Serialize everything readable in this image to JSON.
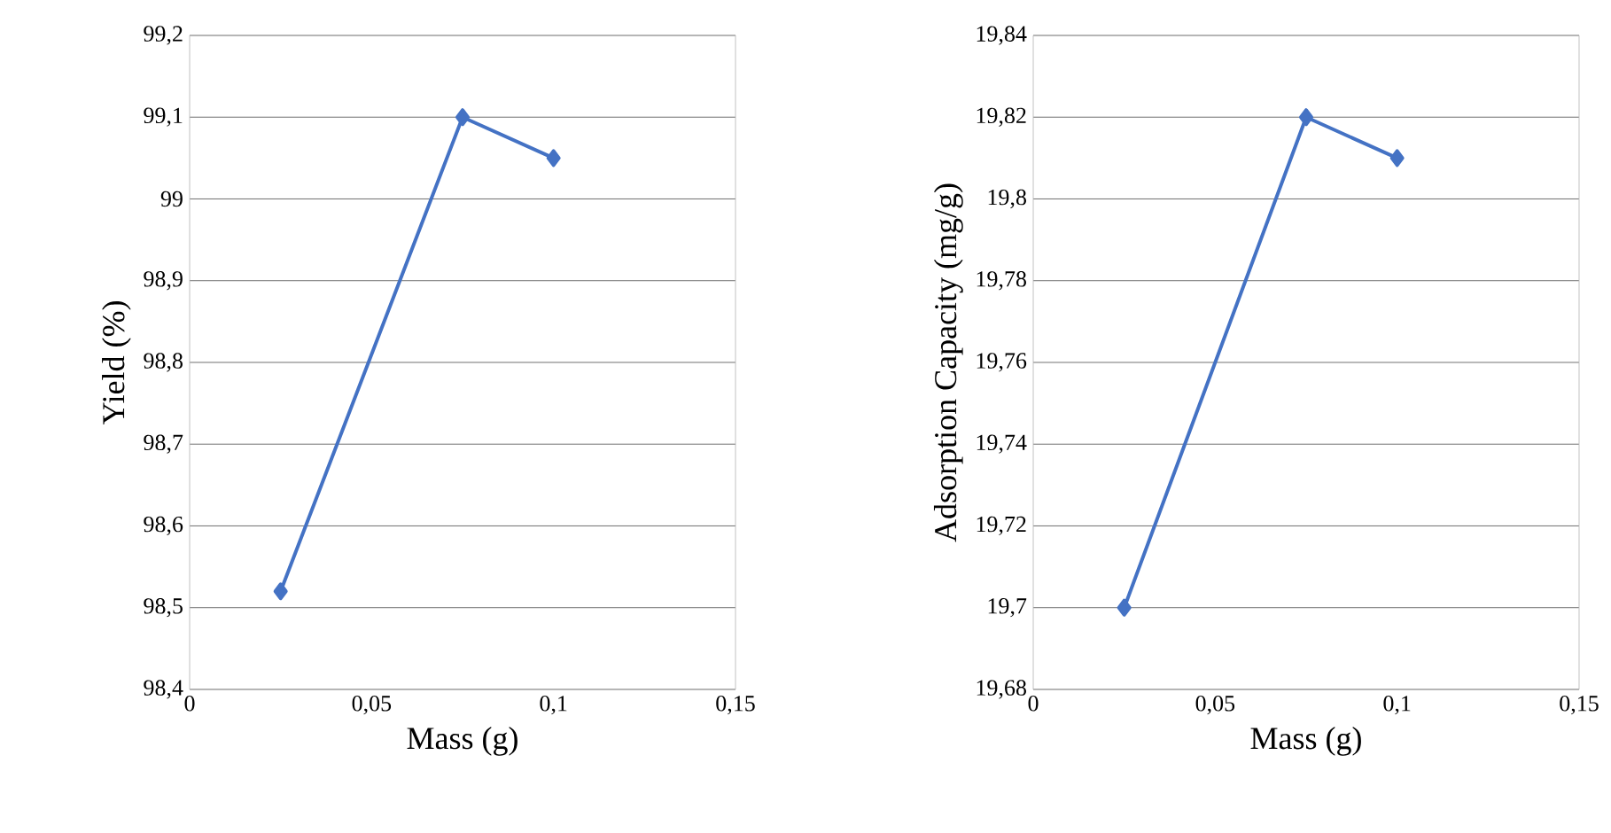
{
  "chart_data": [
    {
      "type": "line",
      "xlabel": "Mass (g)",
      "ylabel": "Yield (%)",
      "x": [
        0.025,
        0.075,
        0.1
      ],
      "series": [
        {
          "color": "#4472c4",
          "values": [
            98.52,
            99.1,
            99.05
          ]
        }
      ],
      "xlim": [
        0,
        0.15
      ],
      "xticks": [
        0,
        {
          "value": 0.05,
          "label": "0,05"
        },
        {
          "value": 0.1,
          "label": "0,1"
        },
        {
          "value": 0.15,
          "label": "0,15"
        }
      ],
      "ylim": [
        98.4,
        99.2
      ],
      "yticks": [
        {
          "value": 98.4,
          "label": "98,4"
        },
        {
          "value": 98.5,
          "label": "98,5"
        },
        {
          "value": 98.6,
          "label": "98,6"
        },
        {
          "value": 98.7,
          "label": "98,7"
        },
        {
          "value": 98.8,
          "label": "98,8"
        },
        {
          "value": 98.9,
          "label": "98,9"
        },
        99,
        {
          "value": 99.1,
          "label": "99,1"
        },
        {
          "value": 99.2,
          "label": "99,2"
        }
      ],
      "grid": "y",
      "marker": "diamond",
      "line_style": "solid"
    },
    {
      "type": "line",
      "xlabel": "Mass (g)",
      "ylabel": "Adsorption Capacity (mg/g)",
      "x": [
        0.025,
        0.075,
        0.1
      ],
      "series": [
        {
          "color": "#4472c4",
          "values": [
            19.7,
            19.82,
            19.81
          ]
        }
      ],
      "xlim": [
        0,
        0.15
      ],
      "xticks": [
        0,
        {
          "value": 0.05,
          "label": "0,05"
        },
        {
          "value": 0.1,
          "label": "0,1"
        },
        {
          "value": 0.15,
          "label": "0,15"
        }
      ],
      "ylim": [
        19.68,
        19.84
      ],
      "yticks": [
        {
          "value": 19.68,
          "label": "19,68"
        },
        {
          "value": 19.7,
          "label": "19,7"
        },
        {
          "value": 19.72,
          "label": "19,72"
        },
        {
          "value": 19.74,
          "label": "19,74"
        },
        {
          "value": 19.76,
          "label": "19,76"
        },
        {
          "value": 19.78,
          "label": "19,78"
        },
        {
          "value": 19.8,
          "label": "19,8"
        },
        {
          "value": 19.82,
          "label": "19,82"
        },
        {
          "value": 19.84,
          "label": "19,84"
        }
      ],
      "grid": "y",
      "marker": "diamond",
      "line_style": "solid"
    }
  ]
}
